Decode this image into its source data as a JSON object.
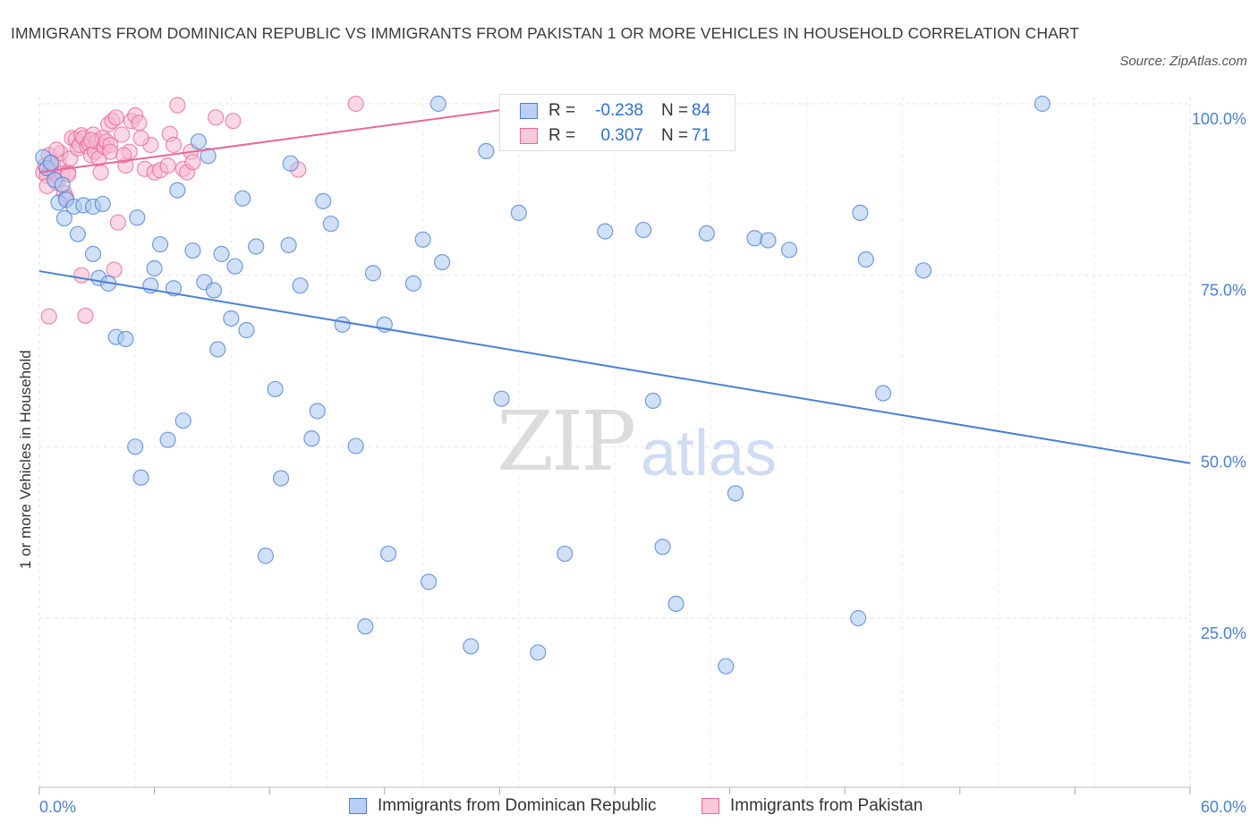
{
  "title": "IMMIGRANTS FROM DOMINICAN REPUBLIC VS IMMIGRANTS FROM PAKISTAN 1 OR MORE VEHICLES IN HOUSEHOLD CORRELATION CHART",
  "source": "Source: ZipAtlas.com",
  "watermark": {
    "zip": "ZIP",
    "atlas": "atlas"
  },
  "colors": {
    "blue": "#4a7fd4",
    "pink": "#e8679a",
    "blue_fill": "#aac6f0",
    "pink_fill": "#f5b8cf"
  },
  "legend": {
    "rows": [
      {
        "r_label": "R =",
        "r_value": "-0.238",
        "n_label": "N =",
        "n_value": "84"
      },
      {
        "r_label": "R =",
        "r_value": "0.307",
        "n_label": "N =",
        "n_value": "71"
      }
    ]
  },
  "bottom_legend": [
    "Immigrants from Dominican Republic",
    "Immigrants from Pakistan"
  ],
  "chart_data": {
    "type": "scatter",
    "title": "IMMIGRANTS FROM DOMINICAN REPUBLIC VS IMMIGRANTS FROM PAKISTAN 1 OR MORE VEHICLES IN HOUSEHOLD CORRELATION CHART",
    "xlabel": "",
    "ylabel": "1 or more Vehicles in Household",
    "xlim": [
      0,
      60
    ],
    "ylim": [
      0,
      102
    ],
    "x_tick_labels": [
      "0.0%",
      "60.0%"
    ],
    "y_tick_labels": [
      "100.0%",
      "75.0%",
      "50.0%",
      "25.0%"
    ],
    "y_tick_values": [
      100,
      75,
      50,
      25
    ],
    "grid": true,
    "legend_position": "top-center",
    "series": [
      {
        "name": "Immigrants from Dominican Republic",
        "color": "#4a7fd4",
        "trend": {
          "x": [
            0,
            60
          ],
          "y": [
            75.6,
            47.6
          ]
        },
        "points": [
          [
            0.2,
            92.2
          ],
          [
            0.4,
            90.6
          ],
          [
            0.6,
            91.4
          ],
          [
            0.8,
            88.9
          ],
          [
            1.0,
            85.6
          ],
          [
            1.2,
            88.2
          ],
          [
            1.4,
            86.0
          ],
          [
            1.8,
            85.0
          ],
          [
            2.0,
            81.0
          ],
          [
            2.3,
            85.2
          ],
          [
            2.8,
            85.0
          ],
          [
            3.3,
            85.4
          ],
          [
            2.8,
            78.1
          ],
          [
            3.1,
            74.6
          ],
          [
            3.6,
            73.8
          ],
          [
            4.0,
            66.0
          ],
          [
            4.5,
            65.7
          ],
          [
            5.0,
            50.0
          ],
          [
            5.3,
            45.5
          ],
          [
            5.1,
            83.4
          ],
          [
            5.8,
            73.5
          ],
          [
            6.0,
            76.0
          ],
          [
            6.3,
            79.5
          ],
          [
            6.7,
            51.0
          ],
          [
            7.0,
            73.1
          ],
          [
            7.2,
            87.4
          ],
          [
            7.5,
            53.8
          ],
          [
            8.0,
            78.6
          ],
          [
            8.6,
            74.0
          ],
          [
            8.3,
            94.5
          ],
          [
            8.8,
            92.4
          ],
          [
            9.1,
            72.8
          ],
          [
            9.5,
            78.1
          ],
          [
            9.3,
            64.2
          ],
          [
            10.2,
            76.3
          ],
          [
            10.0,
            68.7
          ],
          [
            10.6,
            86.2
          ],
          [
            10.8,
            67.0
          ],
          [
            11.3,
            79.2
          ],
          [
            11.8,
            34.1
          ],
          [
            12.3,
            58.4
          ],
          [
            12.6,
            45.4
          ],
          [
            13.1,
            91.3
          ],
          [
            13.0,
            79.4
          ],
          [
            13.6,
            73.5
          ],
          [
            14.2,
            51.2
          ],
          [
            14.5,
            55.2
          ],
          [
            14.8,
            85.8
          ],
          [
            15.2,
            82.5
          ],
          [
            15.8,
            67.8
          ],
          [
            16.5,
            50.1
          ],
          [
            17.4,
            75.3
          ],
          [
            17.0,
            23.8
          ],
          [
            18.0,
            67.8
          ],
          [
            18.2,
            34.4
          ],
          [
            19.5,
            73.8
          ],
          [
            20.0,
            80.2
          ],
          [
            20.3,
            30.3
          ],
          [
            20.8,
            100.0
          ],
          [
            21.0,
            76.9
          ],
          [
            22.5,
            20.9
          ],
          [
            23.3,
            93.1
          ],
          [
            24.1,
            57.0
          ],
          [
            25.0,
            84.1
          ],
          [
            26.0,
            20.0
          ],
          [
            27.4,
            34.4
          ],
          [
            29.5,
            81.4
          ],
          [
            31.5,
            81.6
          ],
          [
            32.0,
            56.7
          ],
          [
            32.5,
            35.4
          ],
          [
            33.2,
            27.1
          ],
          [
            34.8,
            81.1
          ],
          [
            35.8,
            18.0
          ],
          [
            36.3,
            43.2
          ],
          [
            37.3,
            80.4
          ],
          [
            38.0,
            80.1
          ],
          [
            39.1,
            78.7
          ],
          [
            42.7,
            25.0
          ],
          [
            42.8,
            84.1
          ],
          [
            43.1,
            77.3
          ],
          [
            44.0,
            57.8
          ],
          [
            46.1,
            75.7
          ],
          [
            52.3,
            100.0
          ],
          [
            1.3,
            83.3
          ]
        ]
      },
      {
        "name": "Immigrants from Pakistan",
        "color": "#e8679a",
        "trend": {
          "x": [
            0,
            26.5
          ],
          "y": [
            90.0,
            100.0
          ]
        },
        "points": [
          [
            0.2,
            90.0
          ],
          [
            0.3,
            91.0
          ],
          [
            0.4,
            89.5
          ],
          [
            0.5,
            92.5
          ],
          [
            0.6,
            90.5
          ],
          [
            0.5,
            69.0
          ],
          [
            0.7,
            91.4
          ],
          [
            0.8,
            90.0
          ],
          [
            0.9,
            88.5
          ],
          [
            1.0,
            91.5
          ],
          [
            1.1,
            92.8
          ],
          [
            1.2,
            89.8
          ],
          [
            1.3,
            87.0
          ],
          [
            1.4,
            86.3
          ],
          [
            1.5,
            90.0
          ],
          [
            1.6,
            92.0
          ],
          [
            1.7,
            95.0
          ],
          [
            1.9,
            94.8
          ],
          [
            2.0,
            93.5
          ],
          [
            2.1,
            94.0
          ],
          [
            2.2,
            95.4
          ],
          [
            2.2,
            75.0
          ],
          [
            2.3,
            95.0
          ],
          [
            2.4,
            69.1
          ],
          [
            2.5,
            93.8
          ],
          [
            2.6,
            94.2
          ],
          [
            2.7,
            92.5
          ],
          [
            2.8,
            95.5
          ],
          [
            2.9,
            93.0
          ],
          [
            3.0,
            94.5
          ],
          [
            3.1,
            92.0
          ],
          [
            3.2,
            90.0
          ],
          [
            3.3,
            95.0
          ],
          [
            3.4,
            93.7
          ],
          [
            3.5,
            94.5
          ],
          [
            3.6,
            97.0
          ],
          [
            3.7,
            94.0
          ],
          [
            3.8,
            97.5
          ],
          [
            3.9,
            75.8
          ],
          [
            4.0,
            98.0
          ],
          [
            4.1,
            82.7
          ],
          [
            4.3,
            95.5
          ],
          [
            4.5,
            91.0
          ],
          [
            4.7,
            93.0
          ],
          [
            4.8,
            97.5
          ],
          [
            5.0,
            98.3
          ],
          [
            5.2,
            97.2
          ],
          [
            5.5,
            90.5
          ],
          [
            5.8,
            94.0
          ],
          [
            6.0,
            90.0
          ],
          [
            6.3,
            90.3
          ],
          [
            6.7,
            91.0
          ],
          [
            6.8,
            95.6
          ],
          [
            7.0,
            94.0
          ],
          [
            7.2,
            99.8
          ],
          [
            7.5,
            90.5
          ],
          [
            7.7,
            90.0
          ],
          [
            7.9,
            93.0
          ],
          [
            8.0,
            91.5
          ],
          [
            9.2,
            98.0
          ],
          [
            10.1,
            97.5
          ],
          [
            13.5,
            90.4
          ],
          [
            16.5,
            100.0
          ],
          [
            26.5,
            100.0
          ],
          [
            0.4,
            88.0
          ],
          [
            0.9,
            93.3
          ],
          [
            1.5,
            89.7
          ],
          [
            2.7,
            94.7
          ],
          [
            3.7,
            93.0
          ],
          [
            4.4,
            92.5
          ],
          [
            5.3,
            95.0
          ]
        ]
      }
    ]
  }
}
